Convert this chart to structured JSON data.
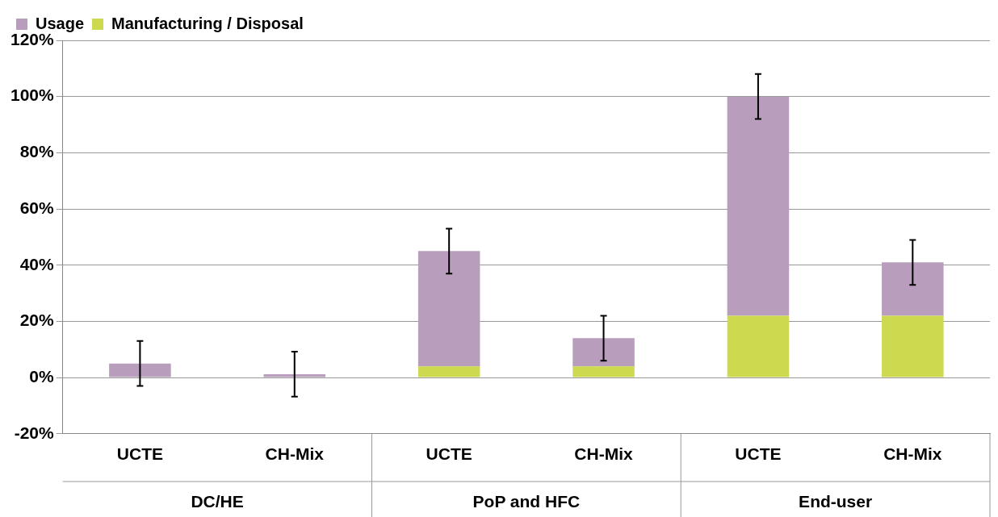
{
  "chart_data": {
    "type": "bar",
    "stacked": true,
    "categories": [
      "UCTE",
      "CH-Mix",
      "UCTE",
      "CH-Mix",
      "UCTE",
      "CH-Mix"
    ],
    "series": [
      {
        "name": "Manufacturing / Disposal",
        "color": "#cdd94f",
        "values": [
          0,
          0,
          4,
          4,
          22,
          22
        ]
      },
      {
        "name": "Usage",
        "color": "#b99dbd",
        "values": [
          5,
          1.2,
          41,
          10,
          78,
          19
        ],
        "errors": [
          8,
          8,
          8,
          8,
          8,
          8
        ]
      }
    ],
    "annotations": [
      "DC/HE",
      "PoP and HFC",
      "End-user"
    ],
    "ylim": [
      -20,
      120
    ],
    "yticks": [
      {
        "value": -20,
        "label": "-20%"
      },
      {
        "value": 0,
        "label": "0%"
      },
      {
        "value": 20,
        "label": "20%"
      },
      {
        "value": 40,
        "label": "40%"
      },
      {
        "value": 60,
        "label": "60%"
      },
      {
        "value": 80,
        "label": "80%"
      },
      {
        "value": 100,
        "label": "100%"
      },
      {
        "value": 120,
        "label": "120%"
      }
    ],
    "grid": "y",
    "legend": "top left"
  }
}
